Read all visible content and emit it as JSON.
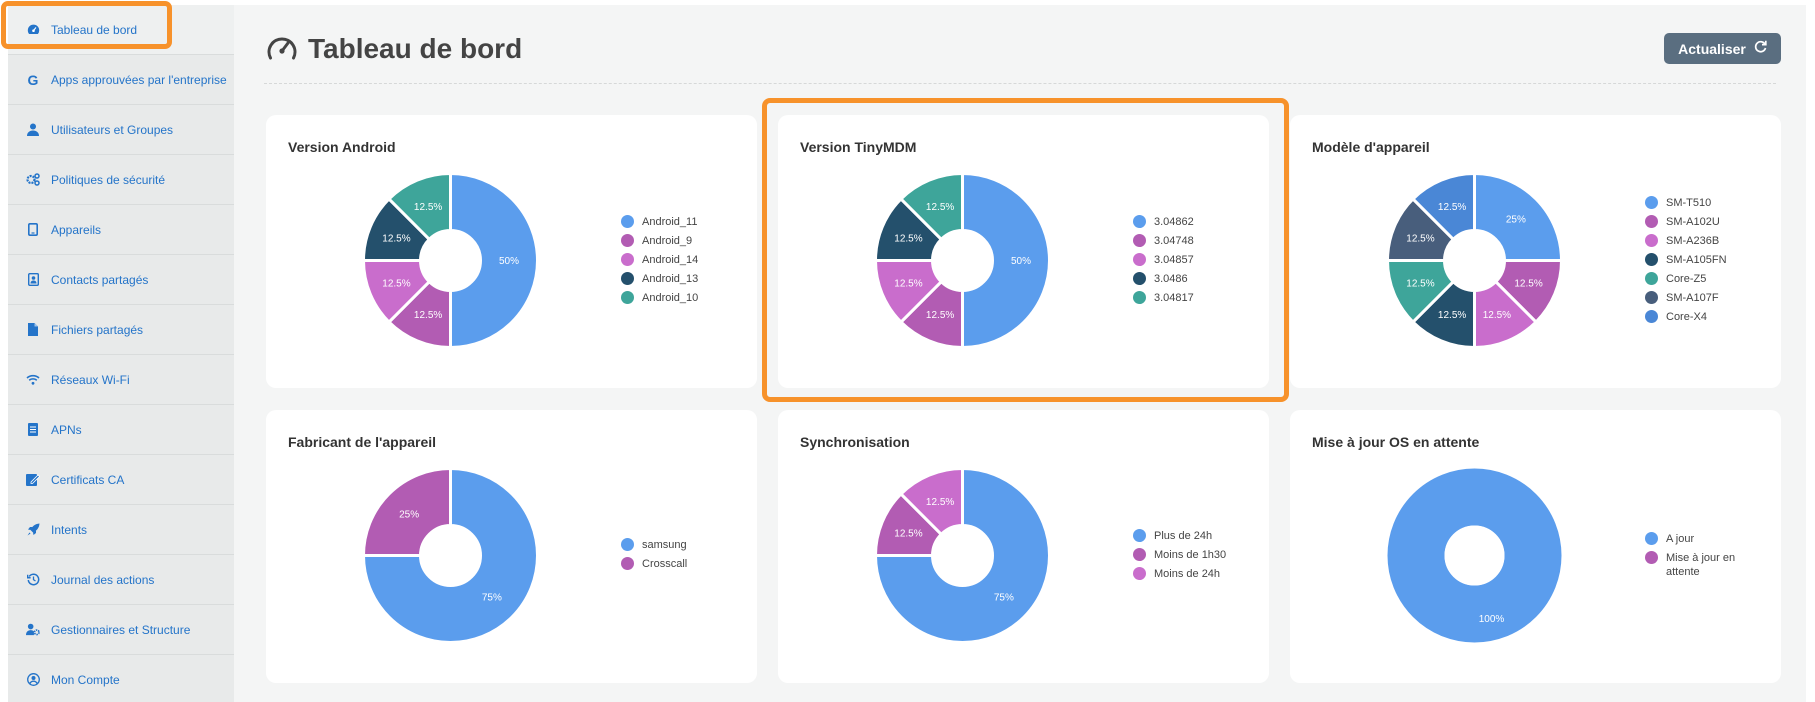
{
  "sidebar": {
    "items": [
      {
        "label": "Tableau de bord",
        "icon": "dashboard-icon"
      },
      {
        "label": "Apps approuvées par l'entreprise",
        "icon": "google-icon"
      },
      {
        "label": "Utilisateurs et Groupes",
        "icon": "user-icon"
      },
      {
        "label": "Politiques de sécurité",
        "icon": "gears-icon"
      },
      {
        "label": "Appareils",
        "icon": "tablet-icon"
      },
      {
        "label": "Contacts partagés",
        "icon": "contact-icon"
      },
      {
        "label": "Fichiers partagés",
        "icon": "file-icon"
      },
      {
        "label": "Réseaux Wi-Fi",
        "icon": "wifi-icon"
      },
      {
        "label": "APNs",
        "icon": "document-icon"
      },
      {
        "label": "Certificats CA",
        "icon": "certificate-icon"
      },
      {
        "label": "Intents",
        "icon": "rocket-icon"
      },
      {
        "label": "Journal des actions",
        "icon": "history-icon"
      },
      {
        "label": "Gestionnaires et Structure",
        "icon": "user-gear-icon"
      },
      {
        "label": "Mon Compte",
        "icon": "account-icon"
      }
    ]
  },
  "header": {
    "title": "Tableau de bord",
    "refresh_label": "Actualiser"
  },
  "colors": {
    "highlight": "#f7922b",
    "accent_link": "#2474c9",
    "button": "#5a6e80"
  },
  "chart_data": [
    {
      "type": "pie",
      "title": "Version Android",
      "categories": [
        "Android_11",
        "Android_9",
        "Android_14",
        "Android_13",
        "Android_10"
      ],
      "values": [
        50,
        12.5,
        12.5,
        12.5,
        12.5
      ],
      "colors": [
        "#5b9ded",
        "#b25cb3",
        "#c96dcc",
        "#24506c",
        "#3ea59a"
      ]
    },
    {
      "type": "pie",
      "title": "Version TinyMDM",
      "categories": [
        "3.04862",
        "3.04748",
        "3.04857",
        "3.0486",
        "3.04817"
      ],
      "values": [
        50,
        12.5,
        12.5,
        12.5,
        12.5
      ],
      "colors": [
        "#5b9ded",
        "#b25cb3",
        "#c96dcc",
        "#24506c",
        "#3ea59a"
      ]
    },
    {
      "type": "pie",
      "title": "Modèle d'appareil",
      "categories": [
        "SM-T510",
        "SM-A102U",
        "SM-A236B",
        "SM-A105FN",
        "Core-Z5",
        "SM-A107F",
        "Core-X4"
      ],
      "values": [
        25,
        12.5,
        12.5,
        12.5,
        12.5,
        12.5,
        12.5
      ],
      "colors": [
        "#5b9ded",
        "#b25cb3",
        "#c96dcc",
        "#24506c",
        "#3ea59a",
        "#485e7c",
        "#4a87d6"
      ]
    },
    {
      "type": "pie",
      "title": "Fabricant de l'appareil",
      "categories": [
        "samsung",
        "Crosscall"
      ],
      "values": [
        75,
        25
      ],
      "colors": [
        "#5b9ded",
        "#b25cb3"
      ]
    },
    {
      "type": "pie",
      "title": "Synchronisation",
      "categories": [
        "Plus de 24h",
        "Moins de 1h30",
        "Moins de 24h"
      ],
      "values": [
        75,
        12.5,
        12.5
      ],
      "colors": [
        "#5b9ded",
        "#b25cb3",
        "#c96dcc"
      ]
    },
    {
      "type": "pie",
      "title": "Mise à jour OS en attente",
      "categories": [
        "A jour",
        "Mise à jour en attente"
      ],
      "values": [
        100,
        0
      ],
      "colors": [
        "#5b9ded",
        "#b25cb3"
      ]
    }
  ]
}
